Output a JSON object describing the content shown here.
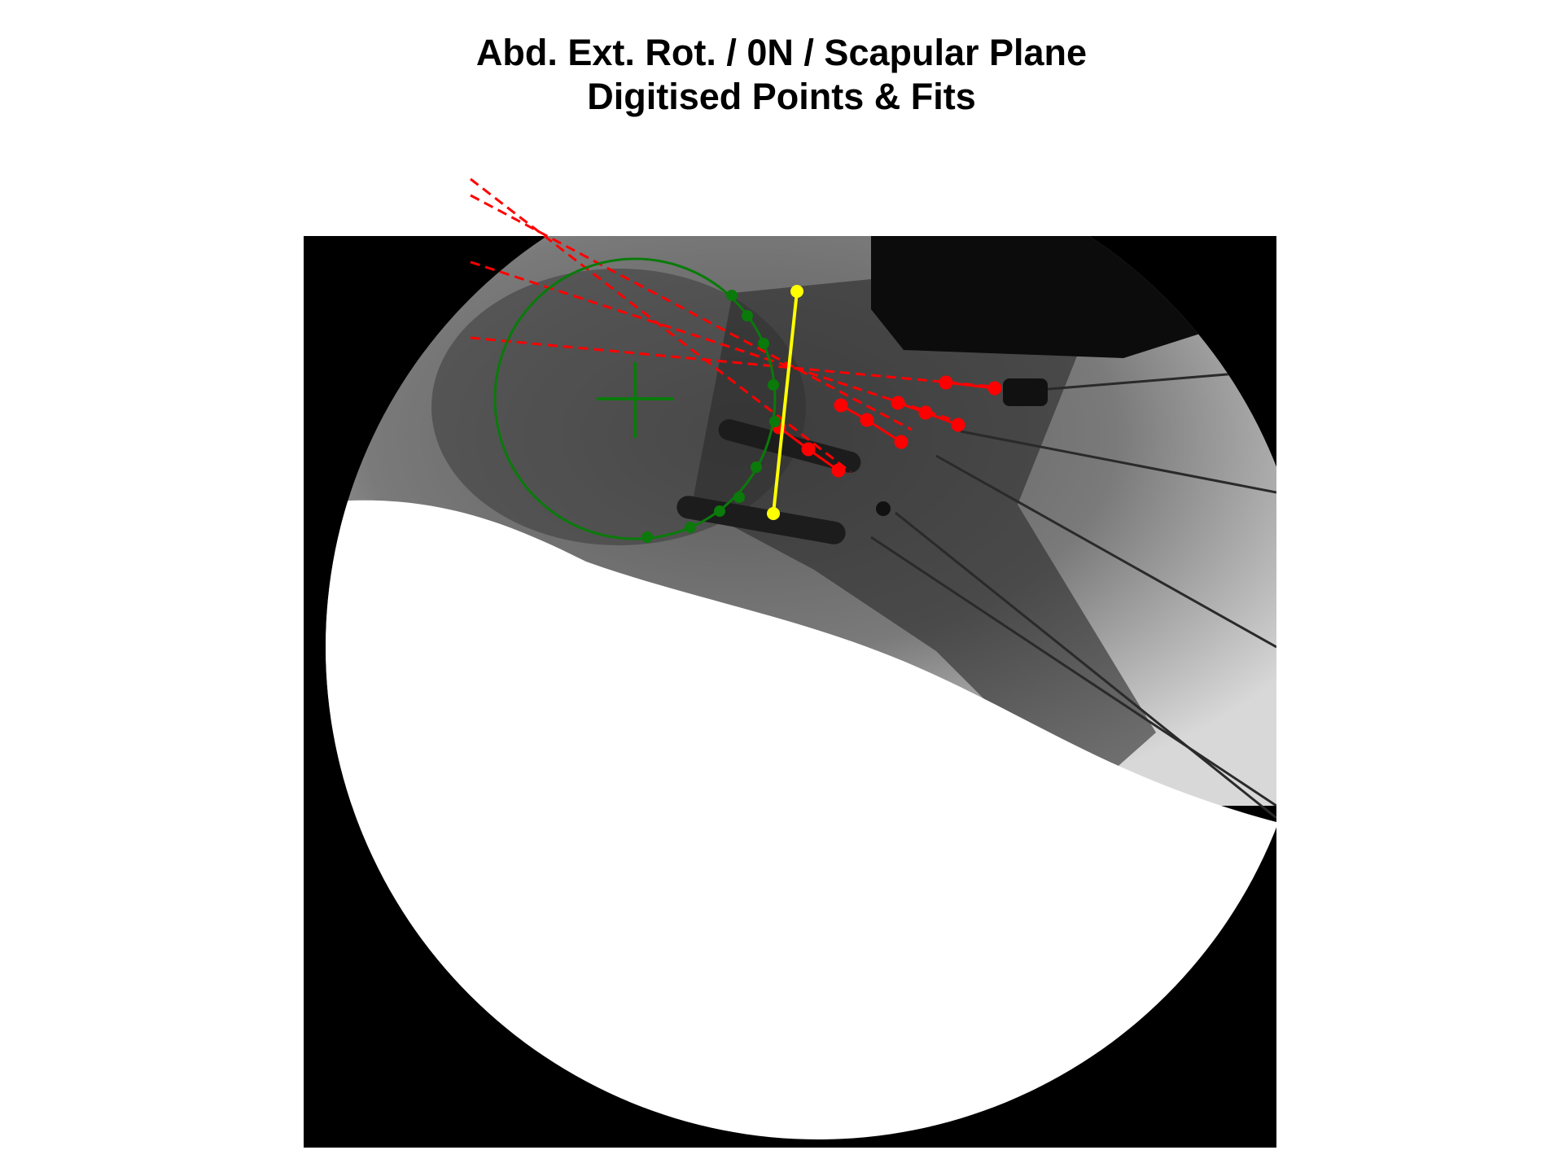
{
  "figure": {
    "title": "Abd. Ext. Rot. / 0N / Scapular Plane",
    "subtitle": "Digitised Points & Fits"
  },
  "colors": {
    "glenoid_fit": "#0a7a0a",
    "fit_lines": "#ff0000",
    "scapular_axis": "#ffff00",
    "image_background": "#000000",
    "image_field": "#ffffff"
  },
  "icons": {
    "fit_center_marker": "plus-crosshair",
    "digitised_point": "filled-circle"
  },
  "overlays": {
    "glenoid_points_count": 9,
    "red_point_series_count": 4,
    "axis_points_count": 2
  }
}
